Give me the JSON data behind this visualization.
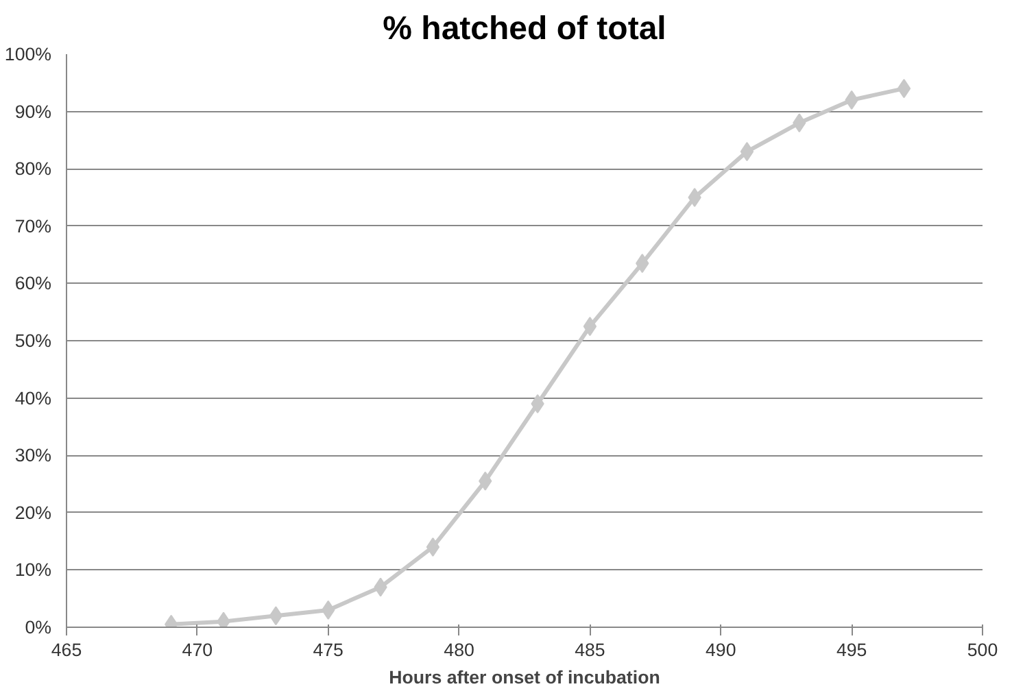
{
  "chart_data": {
    "type": "line",
    "title": "% hatched of total",
    "xlabel": "Hours after onset of incubation",
    "x": [
      469,
      471,
      473,
      475,
      477,
      479,
      481,
      483,
      485,
      487,
      489,
      491,
      493,
      495,
      497
    ],
    "series": [
      {
        "color": "#c8c8c8",
        "values": [
          0.5,
          1,
          2,
          3,
          7,
          14,
          25.5,
          39,
          52.5,
          63.5,
          75,
          83,
          88,
          92,
          94
        ]
      }
    ],
    "xlim": [
      465,
      500
    ],
    "xticks": [
      465,
      470,
      475,
      480,
      485,
      490,
      495,
      500
    ],
    "ylim": [
      0,
      100
    ],
    "yticks": [
      {
        "value": 0,
        "label": "0%"
      },
      {
        "value": 10,
        "label": "10%"
      },
      {
        "value": 20,
        "label": "20%"
      },
      {
        "value": 30,
        "label": "30%"
      },
      {
        "value": 40,
        "label": "40%"
      },
      {
        "value": 50,
        "label": "50%"
      },
      {
        "value": 60,
        "label": "60%"
      },
      {
        "value": 70,
        "label": "70%"
      },
      {
        "value": 80,
        "label": "80%"
      },
      {
        "value": 90,
        "label": "90%"
      },
      {
        "value": 100,
        "label": "100%"
      }
    ],
    "grid": "y",
    "marker": "diamond",
    "line_style": "solid"
  }
}
